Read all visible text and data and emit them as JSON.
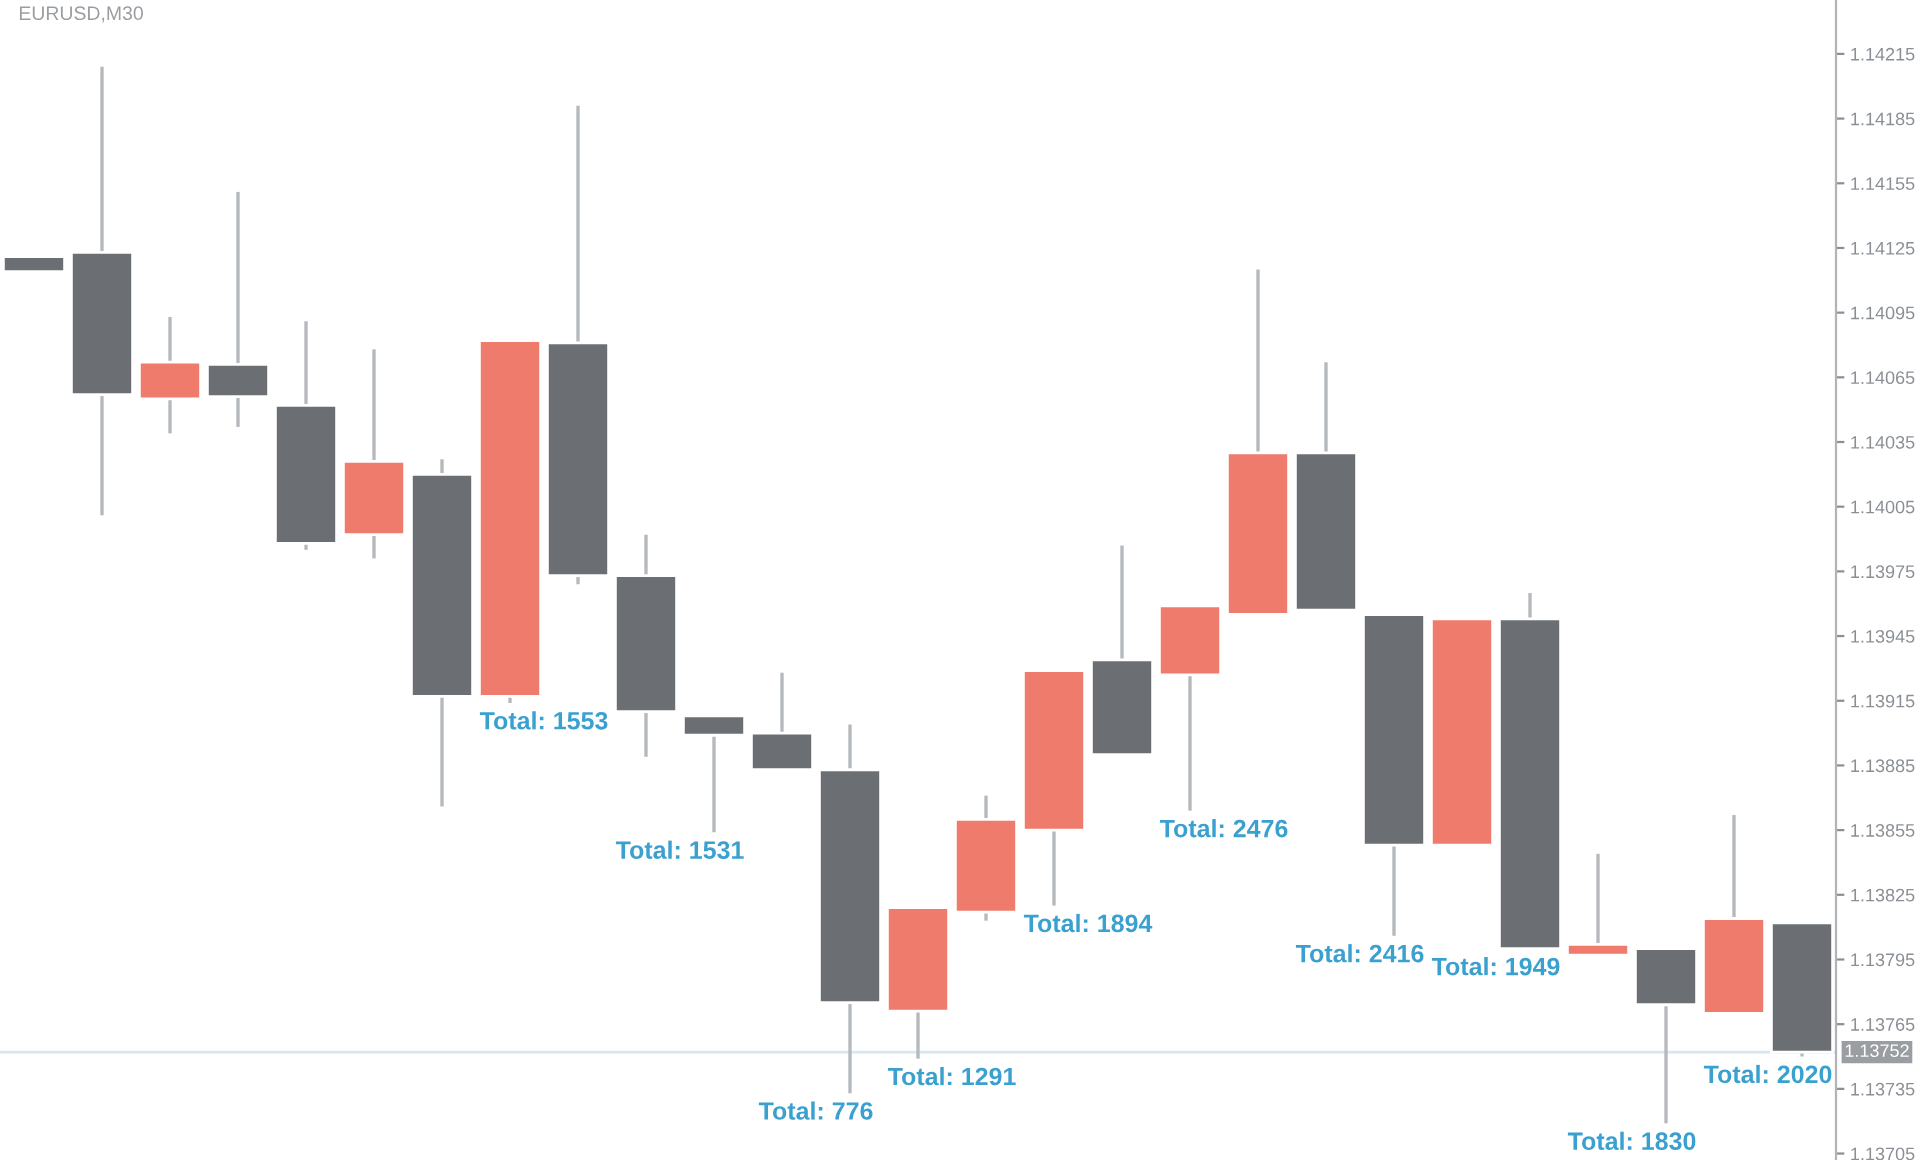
{
  "chart_data": {
    "type": "candlestick",
    "title": "EURUSD,M30",
    "categories": [
      null,
      null,
      null,
      null,
      null,
      null,
      null,
      null,
      null,
      null,
      null,
      null,
      null,
      null,
      null,
      null,
      null,
      null,
      null,
      null,
      null,
      null,
      null,
      null,
      null,
      null,
      null
    ],
    "ohlc": [
      [
        1.14121,
        1.14121,
        1.14114,
        1.14114
      ],
      [
        1.14123,
        1.14209,
        1.14001,
        1.14057
      ],
      [
        1.14055,
        1.14093,
        1.14039,
        1.14072
      ],
      [
        1.14071,
        1.14151,
        1.14042,
        1.14056
      ],
      [
        1.14052,
        1.14091,
        1.13985,
        1.13988
      ],
      [
        1.13992,
        1.14078,
        1.13981,
        1.14026
      ],
      [
        1.1402,
        1.14027,
        1.13866,
        1.13917
      ],
      [
        1.13917,
        1.14082,
        1.13914,
        1.14082
      ],
      [
        1.14081,
        1.14191,
        1.13969,
        1.13973
      ],
      [
        1.13973,
        1.13992,
        1.13889,
        1.1391
      ],
      [
        1.13908,
        1.13908,
        1.13854,
        1.13899
      ],
      [
        1.139,
        1.13928,
        1.13883,
        1.13883
      ],
      [
        1.13883,
        1.13904,
        1.13733,
        1.13775
      ],
      [
        1.13771,
        1.13819,
        1.13749,
        1.13819
      ],
      [
        1.13817,
        1.13871,
        1.13813,
        1.1386
      ],
      [
        1.13855,
        1.13929,
        1.1382,
        1.13929
      ],
      [
        1.13934,
        1.13987,
        1.1389,
        1.1389
      ],
      [
        1.13927,
        1.13959,
        1.13864,
        1.13959
      ],
      [
        1.13955,
        1.14115,
        1.13955,
        1.1403
      ],
      [
        1.1403,
        1.14072,
        1.13957,
        1.13957
      ],
      [
        1.13955,
        1.13955,
        1.13806,
        1.13848
      ],
      [
        1.13848,
        1.13953,
        1.13848,
        1.13953
      ],
      [
        1.13953,
        1.13965,
        1.138,
        1.138
      ],
      [
        1.13797,
        1.13844,
        1.13797,
        1.13802
      ],
      [
        1.138,
        1.138,
        1.13719,
        1.13774
      ],
      [
        1.1377,
        1.13862,
        1.1377,
        1.13814
      ],
      [
        1.13812,
        1.13812,
        1.1375,
        1.13752
      ]
    ],
    "colors": [
      "#6b6f74",
      "#6b6f74",
      "#ee7b6b",
      "#6b6f74",
      "#6b6f74",
      "#ee7b6b",
      "#6b6f74",
      "#ee7b6b",
      "#6b6f74",
      "#6b6f74",
      "#6b6f74",
      "#6b6f74",
      "#6b6f74",
      "#ee7b6b",
      "#ee7b6b",
      "#ee7b6b",
      "#6b6f74",
      "#ee7b6b",
      "#ee7b6b",
      "#6b6f74",
      "#6b6f74",
      "#ee7b6b",
      "#6b6f74",
      "#ee7b6b",
      "#6b6f74",
      "#ee7b6b",
      "#6b6f74"
    ],
    "ylim": [
      1.13702,
      1.1424
    ],
    "yticks": [
      1.14215,
      1.14185,
      1.14155,
      1.14125,
      1.14095,
      1.14065,
      1.14035,
      1.14005,
      1.13975,
      1.13945,
      1.13915,
      1.13885,
      1.13855,
      1.13825,
      1.13795,
      1.13765,
      1.13735,
      1.13705
    ],
    "ref_lines": [
      {
        "axis": "y",
        "value": 1.13752,
        "label": "1.13752",
        "color": "#d6e6f2"
      }
    ],
    "annotations": [
      "Total: 1553",
      "Total: 1531",
      "Total: 776",
      "Total: 1291",
      "Total: 1894",
      "Total: 2476",
      "Total: 2416",
      "Total: 1949",
      "Total: 1830",
      "Total: 2020"
    ],
    "grid": false,
    "legend": false
  }
}
